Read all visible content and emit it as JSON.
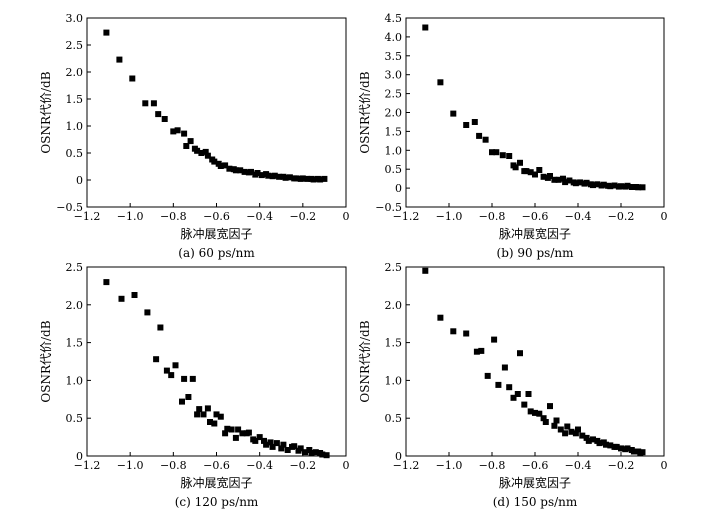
{
  "chart_data": [
    {
      "type": "scatter",
      "caption": "(a) 60 ps/nm",
      "xlabel": "脉冲展宽因子",
      "ylabel": "OSNR代价/dB",
      "xlim": [
        -1.2,
        0
      ],
      "ylim": [
        -0.5,
        3.0
      ],
      "xticks": [
        -1.2,
        -1.0,
        -0.8,
        -0.6,
        -0.4,
        -0.2,
        0
      ],
      "xtick_labels": [
        "−1.2",
        "−1.0",
        "−0.8",
        "−0.6",
        "−0.4",
        "−0.2",
        "0"
      ],
      "yticks": [
        -0.5,
        0,
        0.5,
        1.0,
        1.5,
        2.0,
        2.5,
        3.0
      ],
      "ytick_labels": [
        "−0.5",
        "0",
        "0.5",
        "1.0",
        "1.5",
        "2.0",
        "2.5",
        "3.0"
      ],
      "marker": "square",
      "color": "#000000",
      "x": [
        -1.11,
        -1.05,
        -0.99,
        -0.93,
        -0.89,
        -0.87,
        -0.84,
        -0.8,
        -0.78,
        -0.75,
        -0.74,
        -0.72,
        -0.7,
        -0.69,
        -0.67,
        -0.65,
        -0.64,
        -0.62,
        -0.61,
        -0.59,
        -0.58,
        -0.56,
        -0.54,
        -0.52,
        -0.51,
        -0.49,
        -0.47,
        -0.45,
        -0.44,
        -0.42,
        -0.41,
        -0.39,
        -0.37,
        -0.36,
        -0.34,
        -0.33,
        -0.31,
        -0.29,
        -0.28,
        -0.26,
        -0.24,
        -0.23,
        -0.21,
        -0.2,
        -0.18,
        -0.16,
        -0.15,
        -0.13,
        -0.12,
        -0.1
      ],
      "y": [
        2.73,
        2.23,
        1.88,
        1.42,
        1.42,
        1.22,
        1.13,
        0.9,
        0.92,
        0.86,
        0.63,
        0.72,
        0.58,
        0.54,
        0.5,
        0.52,
        0.45,
        0.38,
        0.34,
        0.3,
        0.26,
        0.27,
        0.21,
        0.2,
        0.18,
        0.18,
        0.15,
        0.14,
        0.15,
        0.1,
        0.13,
        0.09,
        0.11,
        0.08,
        0.07,
        0.08,
        0.06,
        0.06,
        0.04,
        0.05,
        0.03,
        0.03,
        0.02,
        0.03,
        0.02,
        0.02,
        0.01,
        0.02,
        0.01,
        0.02
      ]
    },
    {
      "type": "scatter",
      "caption": "(b) 90 ps/nm",
      "xlabel": "脉冲展宽因子",
      "ylabel": "OSNR代价/dB",
      "xlim": [
        -1.2,
        0
      ],
      "ylim": [
        -0.5,
        4.5
      ],
      "xticks": [
        -1.2,
        -1.0,
        -0.8,
        -0.6,
        -0.4,
        -0.2,
        0
      ],
      "xtick_labels": [
        "−1.2",
        "−1.0",
        "−0.8",
        "−0.6",
        "−0.4",
        "−0.2",
        "0"
      ],
      "yticks": [
        -0.5,
        0,
        0.5,
        1.0,
        1.5,
        2.0,
        2.5,
        3.0,
        3.5,
        4.0,
        4.5
      ],
      "ytick_labels": [
        "−0.5",
        "0",
        "0.5",
        "1.0",
        "1.5",
        "2.0",
        "2.5",
        "3.0",
        "3.5",
        "4.0",
        "4.5"
      ],
      "marker": "square",
      "color": "#000000",
      "x": [
        -1.11,
        -1.04,
        -0.98,
        -0.92,
        -0.88,
        -0.86,
        -0.83,
        -0.8,
        -0.78,
        -0.75,
        -0.72,
        -0.7,
        -0.69,
        -0.67,
        -0.65,
        -0.64,
        -0.62,
        -0.6,
        -0.58,
        -0.56,
        -0.54,
        -0.53,
        -0.51,
        -0.49,
        -0.47,
        -0.46,
        -0.44,
        -0.42,
        -0.41,
        -0.39,
        -0.37,
        -0.36,
        -0.34,
        -0.33,
        -0.31,
        -0.29,
        -0.28,
        -0.26,
        -0.25,
        -0.23,
        -0.21,
        -0.2,
        -0.18,
        -0.17,
        -0.15,
        -0.13,
        -0.12,
        -0.1
      ],
      "y": [
        4.25,
        2.8,
        1.97,
        1.67,
        1.75,
        1.38,
        1.28,
        0.95,
        0.95,
        0.87,
        0.85,
        0.6,
        0.55,
        0.67,
        0.45,
        0.45,
        0.42,
        0.36,
        0.48,
        0.3,
        0.27,
        0.32,
        0.22,
        0.22,
        0.25,
        0.16,
        0.2,
        0.15,
        0.13,
        0.15,
        0.12,
        0.14,
        0.1,
        0.08,
        0.1,
        0.07,
        0.09,
        0.06,
        0.05,
        0.07,
        0.04,
        0.05,
        0.04,
        0.06,
        0.03,
        0.03,
        0.02,
        0.02
      ]
    },
    {
      "type": "scatter",
      "caption": "(c) 120 ps/nm",
      "xlabel": "脉冲展宽因子",
      "ylabel": "OSNR代价/dB",
      "xlim": [
        -1.2,
        0
      ],
      "ylim": [
        0,
        2.5
      ],
      "xticks": [
        -1.2,
        -1.0,
        -0.8,
        -0.6,
        -0.4,
        -0.2,
        0
      ],
      "xtick_labels": [
        "−1.2",
        "−1.0",
        "−0.8",
        "−0.6",
        "−0.4",
        "−0.2",
        "0"
      ],
      "yticks": [
        0,
        0.5,
        1.0,
        1.5,
        2.0,
        2.5
      ],
      "ytick_labels": [
        "0",
        "0.5",
        "1.0",
        "1.5",
        "2.0",
        "2.5"
      ],
      "marker": "square",
      "color": "#000000",
      "x": [
        -1.11,
        -1.04,
        -0.98,
        -0.92,
        -0.88,
        -0.86,
        -0.83,
        -0.81,
        -0.79,
        -0.76,
        -0.75,
        -0.73,
        -0.71,
        -0.69,
        -0.68,
        -0.66,
        -0.64,
        -0.63,
        -0.61,
        -0.6,
        -0.58,
        -0.56,
        -0.55,
        -0.53,
        -0.51,
        -0.5,
        -0.48,
        -0.46,
        -0.45,
        -0.43,
        -0.42,
        -0.4,
        -0.38,
        -0.37,
        -0.35,
        -0.34,
        -0.32,
        -0.3,
        -0.29,
        -0.27,
        -0.25,
        -0.24,
        -0.22,
        -0.21,
        -0.19,
        -0.17,
        -0.16,
        -0.14,
        -0.12,
        -0.11,
        -0.09
      ],
      "y": [
        2.3,
        2.08,
        2.13,
        1.9,
        1.28,
        1.7,
        1.13,
        1.07,
        1.2,
        0.72,
        1.02,
        0.78,
        1.02,
        0.55,
        0.62,
        0.55,
        0.63,
        0.45,
        0.43,
        0.55,
        0.52,
        0.3,
        0.36,
        0.35,
        0.24,
        0.35,
        0.3,
        0.3,
        0.31,
        0.22,
        0.2,
        0.25,
        0.2,
        0.15,
        0.18,
        0.12,
        0.17,
        0.1,
        0.15,
        0.08,
        0.12,
        0.13,
        0.07,
        0.1,
        0.05,
        0.08,
        0.04,
        0.05,
        0.04,
        0.02,
        0.01
      ]
    },
    {
      "type": "scatter",
      "caption": "(d) 150 ps/nm",
      "xlabel": "脉冲展宽因子",
      "ylabel": "OSNR代价/dB",
      "xlim": [
        -1.2,
        0
      ],
      "ylim": [
        0,
        2.5
      ],
      "xticks": [
        -1.2,
        -1.0,
        -0.8,
        -0.6,
        -0.4,
        -0.2,
        0
      ],
      "xtick_labels": [
        "−1.2",
        "−1.0",
        "−0.8",
        "−0.6",
        "−0.4",
        "−0.2",
        "0"
      ],
      "yticks": [
        0,
        0.5,
        1.0,
        1.5,
        2.0,
        2.5
      ],
      "ytick_labels": [
        "0",
        "0.5",
        "1.0",
        "1.5",
        "2.0",
        "2.5"
      ],
      "marker": "square",
      "color": "#000000",
      "x": [
        -1.11,
        -1.04,
        -0.98,
        -0.92,
        -0.87,
        -0.85,
        -0.82,
        -0.79,
        -0.77,
        -0.74,
        -0.72,
        -0.7,
        -0.68,
        -0.67,
        -0.65,
        -0.63,
        -0.62,
        -0.6,
        -0.58,
        -0.56,
        -0.55,
        -0.53,
        -0.51,
        -0.5,
        -0.48,
        -0.46,
        -0.45,
        -0.43,
        -0.41,
        -0.4,
        -0.38,
        -0.36,
        -0.35,
        -0.33,
        -0.31,
        -0.3,
        -0.28,
        -0.27,
        -0.25,
        -0.23,
        -0.22,
        -0.2,
        -0.18,
        -0.17,
        -0.15,
        -0.14,
        -0.12,
        -0.11,
        -0.1
      ],
      "y": [
        2.45,
        1.83,
        1.65,
        1.62,
        1.38,
        1.39,
        1.06,
        1.54,
        0.94,
        1.17,
        0.91,
        0.77,
        0.82,
        1.36,
        0.68,
        0.82,
        0.59,
        0.57,
        0.56,
        0.5,
        0.45,
        0.66,
        0.4,
        0.47,
        0.35,
        0.3,
        0.39,
        0.32,
        0.3,
        0.35,
        0.27,
        0.24,
        0.2,
        0.22,
        0.2,
        0.17,
        0.18,
        0.15,
        0.14,
        0.12,
        0.12,
        0.1,
        0.09,
        0.1,
        0.08,
        0.06,
        0.06,
        0.04,
        0.05
      ]
    }
  ]
}
